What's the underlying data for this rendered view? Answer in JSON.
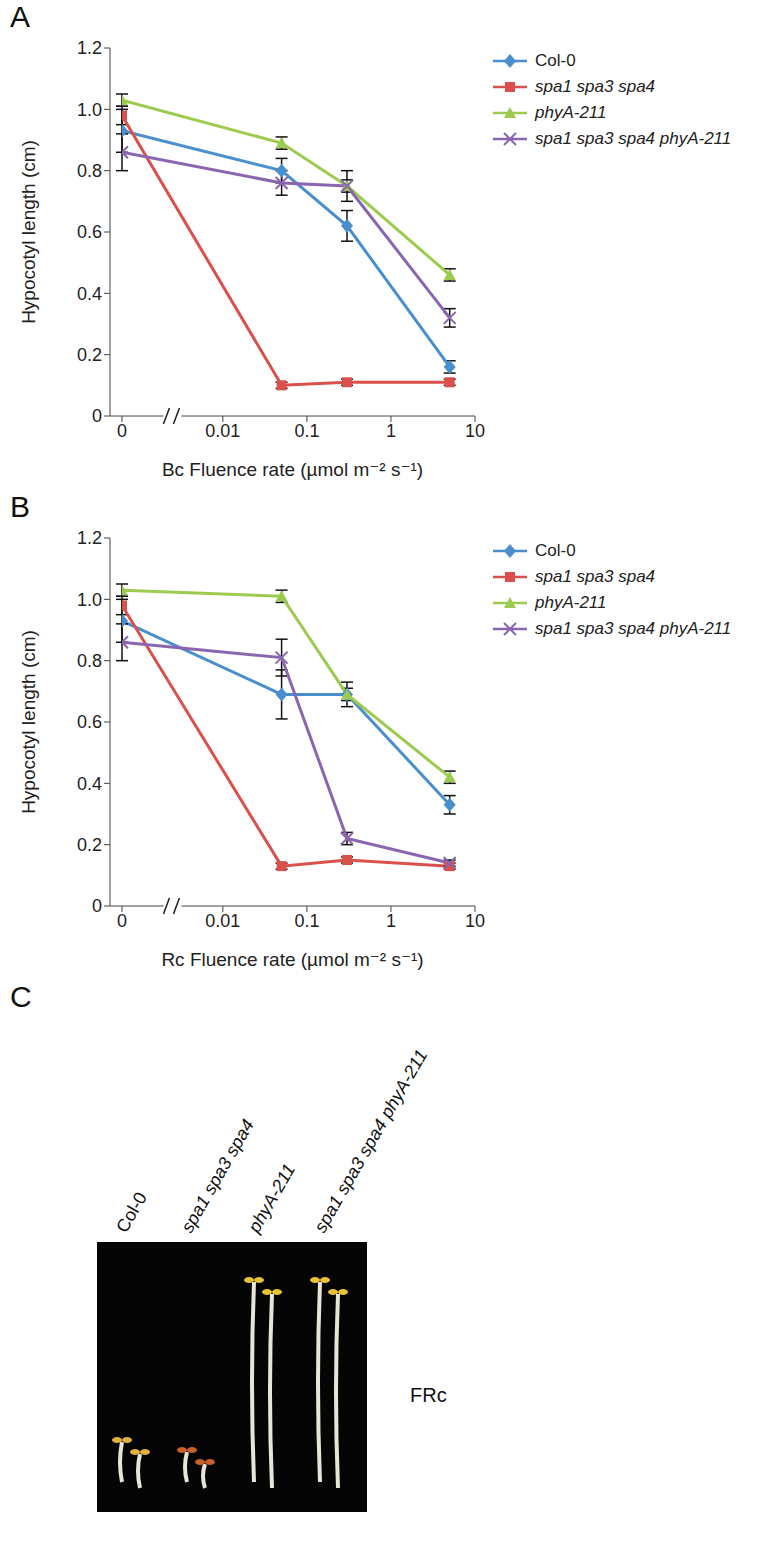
{
  "chart_data": [
    {
      "type": "line",
      "x_label": "Bc Fluence rate (µmol m⁻² s⁻¹)",
      "y_label": "Hypocotyl length (cm)",
      "x": [
        0,
        0.05,
        0.3,
        5
      ],
      "xlim": [
        0,
        10
      ],
      "xticks": [
        0,
        0.01,
        0.1,
        1,
        10
      ],
      "log": "x",
      "ylim": [
        0,
        1.2
      ],
      "yticks": [
        0,
        0.2,
        0.4,
        0.6,
        0.8,
        {
          "value": 1,
          "label": "1.0"
        },
        1.2
      ],
      "grid": false,
      "legend": "top-right",
      "series": [
        {
          "name": "Col-0",
          "color": "#4a8fcd",
          "marker": "diamond",
          "values": [
            0.93,
            0.8,
            0.62,
            0.16
          ],
          "errors": [
            0.07,
            0.04,
            0.05,
            0.02
          ]
        },
        {
          "name": "spa1 spa3 spa4",
          "color": "#d9504c",
          "marker": "square",
          "values": [
            0.98,
            0.1,
            0.11,
            0.11
          ],
          "errors": [
            0.03,
            0.01,
            0.01,
            0.01
          ]
        },
        {
          "name": "phyA-211",
          "color": "#9ccb4f",
          "marker": "triangle",
          "values": [
            1.03,
            0.89,
            0.75,
            0.46
          ],
          "errors": [
            0.02,
            0.02,
            0.02,
            0.02
          ]
        },
        {
          "name": "spa1 spa3 spa4 phyA-211",
          "color": "#8a66b0",
          "marker": "x",
          "values": [
            0.86,
            0.76,
            0.75,
            0.32
          ],
          "errors": [
            0.06,
            0.04,
            0.05,
            0.03
          ]
        }
      ]
    },
    {
      "type": "line",
      "x_label": "Rc Fluence rate (µmol m⁻² s⁻¹)",
      "y_label": "Hypocotyl length (cm)",
      "x": [
        0,
        0.05,
        0.3,
        5
      ],
      "xlim": [
        0,
        10
      ],
      "xticks": [
        0,
        0.01,
        0.1,
        1,
        10
      ],
      "log": "x",
      "ylim": [
        0,
        1.2
      ],
      "yticks": [
        0,
        0.2,
        0.4,
        0.6,
        0.8,
        {
          "value": 1,
          "label": "1.0"
        },
        1.2
      ],
      "grid": false,
      "legend": "top-right",
      "series": [
        {
          "name": "Col-0",
          "color": "#4a8fcd",
          "marker": "diamond",
          "values": [
            0.93,
            0.69,
            0.69,
            0.33
          ],
          "errors": [
            0.07,
            0.08,
            0.02,
            0.03
          ]
        },
        {
          "name": "spa1 spa3 spa4",
          "color": "#d9504c",
          "marker": "square",
          "values": [
            0.98,
            0.13,
            0.15,
            0.13
          ],
          "errors": [
            0.03,
            0.01,
            0.01,
            0.01
          ]
        },
        {
          "name": "phyA-211",
          "color": "#9ccb4f",
          "marker": "triangle",
          "values": [
            1.03,
            1.01,
            0.69,
            0.42
          ],
          "errors": [
            0.02,
            0.02,
            0.04,
            0.02
          ]
        },
        {
          "name": "spa1 spa3 spa4 phyA-211",
          "color": "#8a66b0",
          "marker": "x",
          "values": [
            0.86,
            0.81,
            0.22,
            0.14
          ],
          "errors": [
            0.06,
            0.06,
            0.02,
            0.01
          ]
        }
      ]
    }
  ],
  "panel_labels": [
    "A",
    "B",
    "C"
  ],
  "photo": {
    "caption": "FRc",
    "labels": [
      "Col-0",
      "spa1 spa3 spa4",
      "phyA-211",
      "spa1 spa3 spa4 phyA-211"
    ]
  }
}
